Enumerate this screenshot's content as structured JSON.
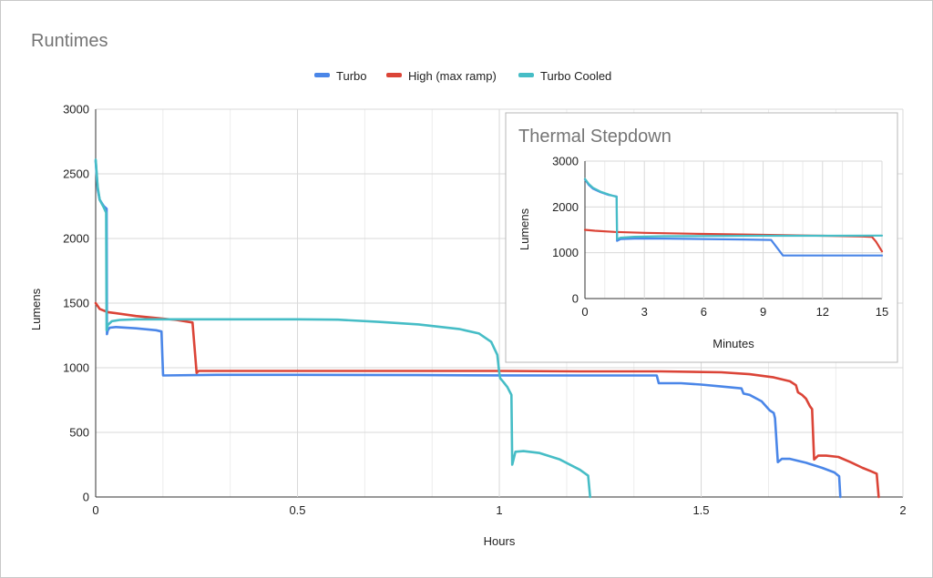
{
  "chart_data": [
    {
      "type": "line",
      "title": "Runtimes",
      "xlabel": "Hours",
      "ylabel": "Lumens",
      "xlim": [
        0,
        2
      ],
      "ylim": [
        0,
        3000
      ],
      "xticks": [
        0,
        0.5,
        1,
        1.5,
        2
      ],
      "xtick_labels": [
        "0",
        "0.5",
        "1",
        "1.5",
        "2"
      ],
      "yticks": [
        0,
        500,
        1000,
        1500,
        2000,
        2500,
        3000
      ],
      "ytick_labels": [
        "0",
        "500",
        "1000",
        "1500",
        "2000",
        "2500",
        "3000"
      ],
      "grid": true,
      "legend_position": "top-center",
      "series": [
        {
          "name": "Turbo",
          "color": "#4a86e8",
          "points": [
            [
              0,
              2600
            ],
            [
              0.005,
              2380
            ],
            [
              0.01,
              2300
            ],
            [
              0.02,
              2250
            ],
            [
              0.027,
              2230
            ],
            [
              0.028,
              1260
            ],
            [
              0.03,
              1290
            ],
            [
              0.035,
              1310
            ],
            [
              0.05,
              1315
            ],
            [
              0.1,
              1305
            ],
            [
              0.15,
              1290
            ],
            [
              0.163,
              1280
            ],
            [
              0.167,
              940
            ],
            [
              0.3,
              945
            ],
            [
              0.5,
              945
            ],
            [
              0.8,
              943
            ],
            [
              1.0,
              941
            ],
            [
              1.2,
              940
            ],
            [
              1.39,
              940
            ],
            [
              1.395,
              880
            ],
            [
              1.45,
              880
            ],
            [
              1.5,
              870
            ],
            [
              1.55,
              855
            ],
            [
              1.6,
              840
            ],
            [
              1.605,
              800
            ],
            [
              1.62,
              790
            ],
            [
              1.65,
              740
            ],
            [
              1.67,
              670
            ],
            [
              1.68,
              650
            ],
            [
              1.683,
              610
            ],
            [
              1.69,
              270
            ],
            [
              1.7,
              295
            ],
            [
              1.72,
              295
            ],
            [
              1.76,
              265
            ],
            [
              1.8,
              225
            ],
            [
              1.83,
              190
            ],
            [
              1.842,
              160
            ],
            [
              1.845,
              0
            ]
          ]
        },
        {
          "name": "High (max ramp)",
          "color": "#db4437",
          "points": [
            [
              0,
              1500
            ],
            [
              0.01,
              1455
            ],
            [
              0.03,
              1430
            ],
            [
              0.1,
              1400
            ],
            [
              0.2,
              1370
            ],
            [
              0.24,
              1350
            ],
            [
              0.25,
              960
            ],
            [
              0.255,
              975
            ],
            [
              0.5,
              975
            ],
            [
              0.8,
              975
            ],
            [
              1.0,
              975
            ],
            [
              1.2,
              972
            ],
            [
              1.4,
              972
            ],
            [
              1.55,
              965
            ],
            [
              1.62,
              950
            ],
            [
              1.68,
              925
            ],
            [
              1.72,
              895
            ],
            [
              1.735,
              865
            ],
            [
              1.74,
              810
            ],
            [
              1.75,
              790
            ],
            [
              1.76,
              760
            ],
            [
              1.77,
              700
            ],
            [
              1.775,
              680
            ],
            [
              1.78,
              290
            ],
            [
              1.79,
              320
            ],
            [
              1.81,
              320
            ],
            [
              1.84,
              310
            ],
            [
              1.87,
              270
            ],
            [
              1.9,
              225
            ],
            [
              1.92,
              200
            ],
            [
              1.935,
              180
            ],
            [
              1.94,
              0
            ]
          ]
        },
        {
          "name": "Turbo Cooled",
          "color": "#46bdc6",
          "points": [
            [
              0,
              2610
            ],
            [
              0.005,
              2400
            ],
            [
              0.01,
              2300
            ],
            [
              0.02,
              2240
            ],
            [
              0.026,
              2200
            ],
            [
              0.027,
              1290
            ],
            [
              0.03,
              1330
            ],
            [
              0.04,
              1360
            ],
            [
              0.06,
              1370
            ],
            [
              0.1,
              1375
            ],
            [
              0.3,
              1375
            ],
            [
              0.5,
              1375
            ],
            [
              0.6,
              1372
            ],
            [
              0.7,
              1355
            ],
            [
              0.8,
              1335
            ],
            [
              0.9,
              1300
            ],
            [
              0.95,
              1265
            ],
            [
              0.98,
              1200
            ],
            [
              0.995,
              1100
            ],
            [
              1.0,
              960
            ],
            [
              1.002,
              920
            ],
            [
              1.01,
              890
            ],
            [
              1.02,
              850
            ],
            [
              1.025,
              820
            ],
            [
              1.03,
              790
            ],
            [
              1.032,
              250
            ],
            [
              1.04,
              350
            ],
            [
              1.06,
              355
            ],
            [
              1.1,
              340
            ],
            [
              1.15,
              290
            ],
            [
              1.2,
              210
            ],
            [
              1.22,
              165
            ],
            [
              1.225,
              0
            ]
          ]
        }
      ]
    },
    {
      "type": "line",
      "title": "Thermal Stepdown",
      "xlabel": "Minutes",
      "ylabel": "Lumens",
      "xlim": [
        0,
        15
      ],
      "ylim": [
        0,
        3000
      ],
      "xticks": [
        0,
        3,
        6,
        9,
        12,
        15
      ],
      "xtick_labels": [
        "0",
        "3",
        "6",
        "9",
        "12",
        "15"
      ],
      "yticks": [
        0,
        1000,
        2000,
        3000
      ],
      "ytick_labels": [
        "0",
        "1000",
        "2000",
        "3000"
      ],
      "grid": true,
      "series": [
        {
          "name": "Turbo",
          "color": "#4a86e8",
          "points": [
            [
              0,
              2600
            ],
            [
              0.2,
              2480
            ],
            [
              0.4,
              2400
            ],
            [
              0.8,
              2320
            ],
            [
              1.2,
              2260
            ],
            [
              1.6,
              2230
            ],
            [
              1.62,
              1260
            ],
            [
              1.8,
              1300
            ],
            [
              2.5,
              1310
            ],
            [
              4,
              1310
            ],
            [
              6,
              1300
            ],
            [
              8,
              1290
            ],
            [
              9.4,
              1280
            ],
            [
              10,
              940
            ],
            [
              12,
              940
            ],
            [
              15,
              940
            ]
          ]
        },
        {
          "name": "High (max ramp)",
          "color": "#db4437",
          "points": [
            [
              0,
              1500
            ],
            [
              0.5,
              1480
            ],
            [
              1.5,
              1455
            ],
            [
              3,
              1435
            ],
            [
              6,
              1410
            ],
            [
              9,
              1390
            ],
            [
              12,
              1370
            ],
            [
              14,
              1355
            ],
            [
              14.5,
              1345
            ],
            [
              14.7,
              1240
            ],
            [
              15,
              1030
            ]
          ]
        },
        {
          "name": "Turbo Cooled",
          "color": "#46bdc6",
          "points": [
            [
              0,
              2610
            ],
            [
              0.2,
              2500
            ],
            [
              0.4,
              2420
            ],
            [
              0.8,
              2330
            ],
            [
              1.2,
              2270
            ],
            [
              1.6,
              2220
            ],
            [
              1.62,
              1300
            ],
            [
              1.8,
              1330
            ],
            [
              2.5,
              1350
            ],
            [
              4,
              1360
            ],
            [
              6,
              1365
            ],
            [
              9,
              1370
            ],
            [
              12,
              1370
            ],
            [
              15,
              1375
            ]
          ]
        }
      ]
    }
  ]
}
